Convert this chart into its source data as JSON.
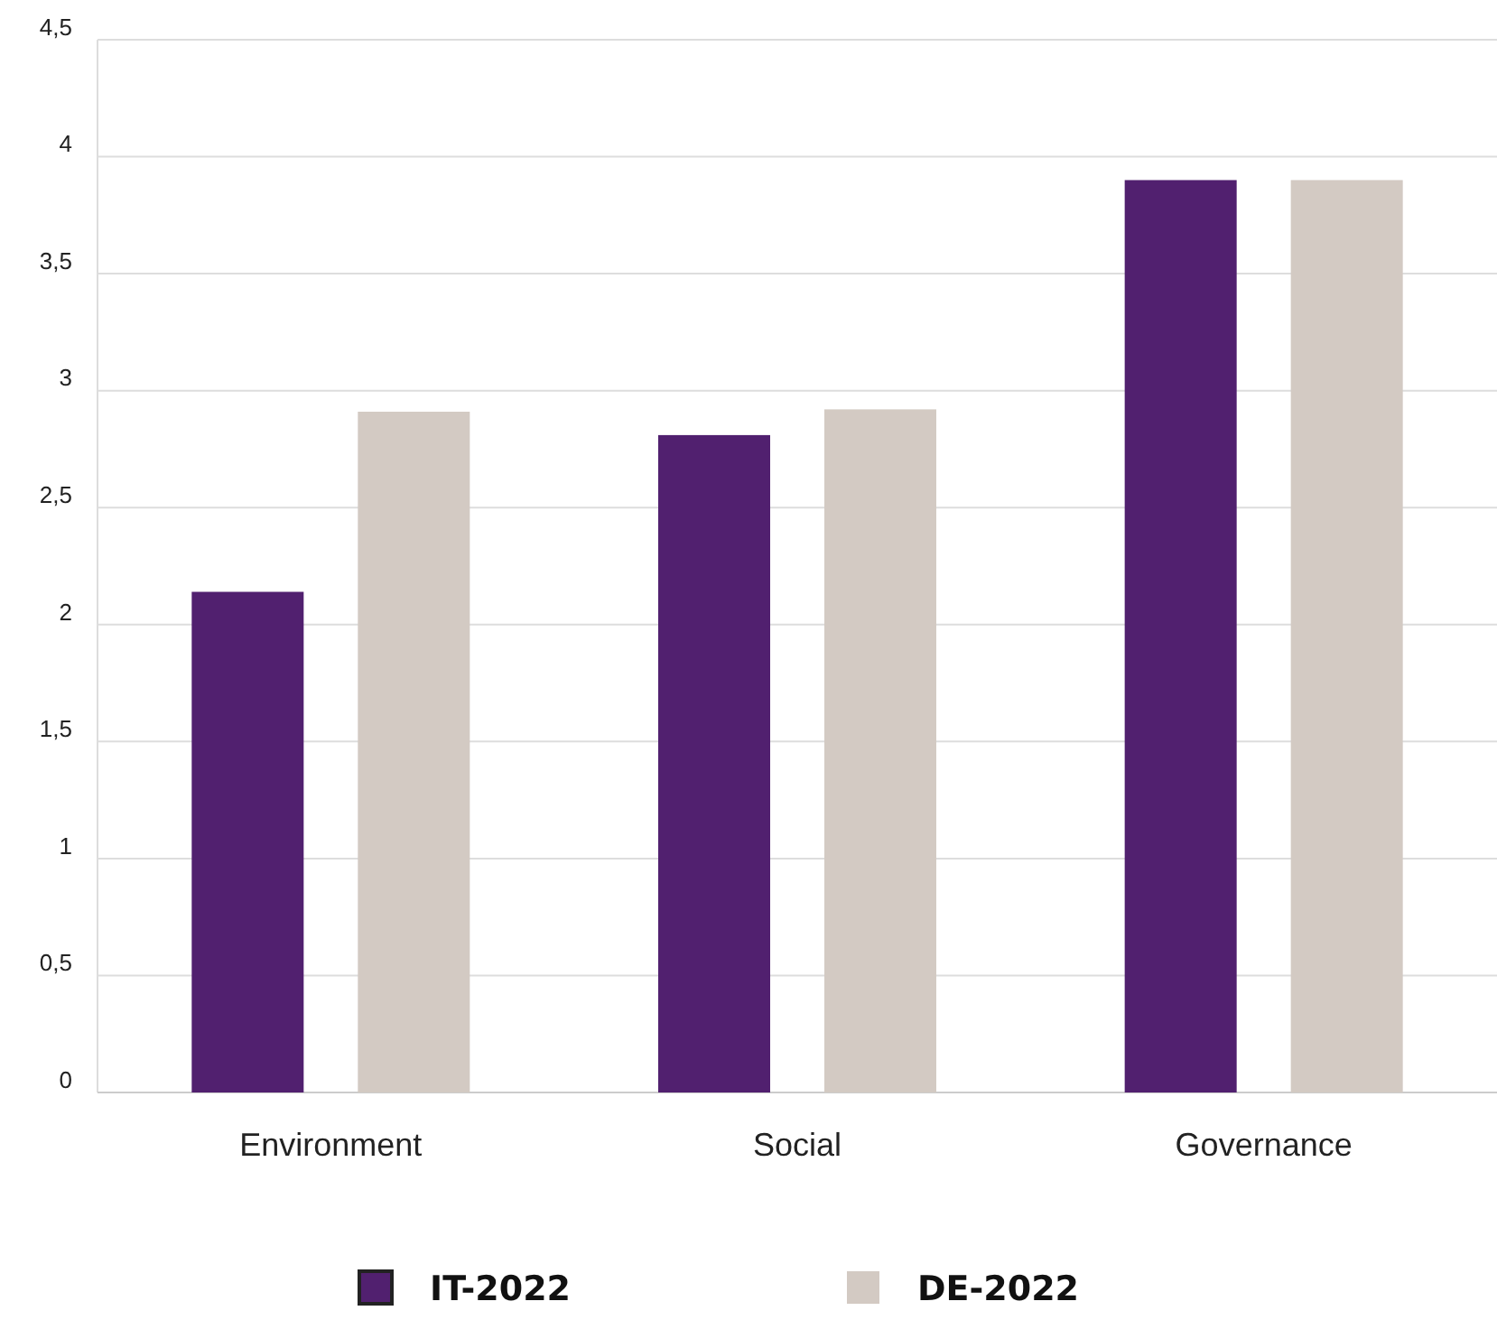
{
  "chart_data": {
    "type": "bar",
    "categories": [
      "Environment",
      "Social",
      "Governance"
    ],
    "series": [
      {
        "name": "IT-2022",
        "color": "#51206f",
        "values": [
          2.14,
          2.81,
          3.9
        ]
      },
      {
        "name": "DE-2022",
        "color": "#d3cac3",
        "values": [
          2.91,
          2.92,
          3.9
        ]
      }
    ],
    "ylim": [
      0,
      4.5
    ],
    "yticks": [
      0,
      {
        "value": 0.5,
        "label": "0,5"
      },
      1,
      {
        "value": 1.5,
        "label": "1,5"
      },
      2,
      {
        "value": 2.5,
        "label": "2,5"
      },
      3,
      {
        "value": 3.5,
        "label": "3,5"
      },
      4,
      {
        "value": 4.5,
        "label": "4,5"
      }
    ],
    "grid": "y",
    "legend": "bottom"
  }
}
